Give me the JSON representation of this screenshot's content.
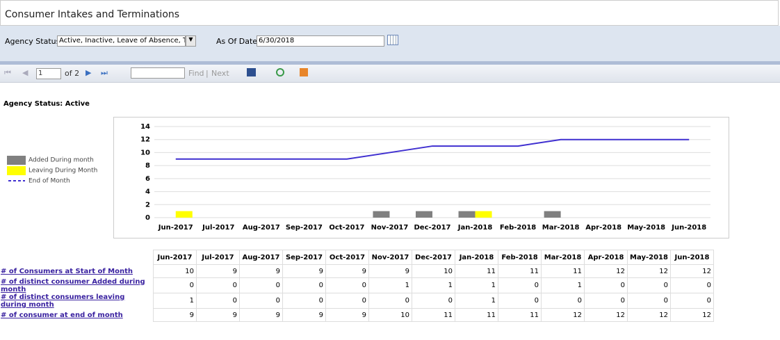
{
  "header": {
    "title": "Consumer Intakes and Terminations"
  },
  "params": {
    "agency_status_label": "Agency Status",
    "agency_status_value": "Active, Inactive, Leave of Absence, Te",
    "as_of_label": "As Of Date",
    "as_of_value": "6/30/2018"
  },
  "toolbar": {
    "page": "1",
    "of": "of 2",
    "find": "Find",
    "separator": "|",
    "next": "Next"
  },
  "section": "Agency Status: Active",
  "chart_data": {
    "type": "combo",
    "categories": [
      "Jun-2017",
      "Jul-2017",
      "Aug-2017",
      "Sep-2017",
      "Oct-2017",
      "Nov-2017",
      "Dec-2017",
      "Jan-2018",
      "Feb-2018",
      "Mar-2018",
      "Apr-2018",
      "May-2018",
      "Jun-2018"
    ],
    "series": [
      {
        "name": "Added During month",
        "mark": "bar",
        "color": "#808080",
        "values": [
          0,
          0,
          0,
          0,
          0,
          1,
          1,
          1,
          0,
          1,
          0,
          0,
          0
        ]
      },
      {
        "name": "Leaving During Month",
        "mark": "bar",
        "color": "#ffff00",
        "values": [
          1,
          0,
          0,
          0,
          0,
          0,
          0,
          1,
          0,
          0,
          0,
          0,
          0
        ]
      },
      {
        "name": "End of Month",
        "mark": "line",
        "color": "#3f2fd0",
        "values": [
          9,
          9,
          9,
          9,
          9,
          10,
          11,
          11,
          11,
          12,
          12,
          12,
          12
        ]
      }
    ],
    "ylim": [
      0,
      14
    ],
    "yticks": [
      0,
      2,
      4,
      6,
      8,
      10,
      12,
      14
    ],
    "grid": true,
    "legend": "left"
  },
  "table": {
    "columns": [
      "Jun-2017",
      "Jul-2017",
      "Aug-2017",
      "Sep-2017",
      "Oct-2017",
      "Nov-2017",
      "Dec-2017",
      "Jan-2018",
      "Feb-2018",
      "Mar-2018",
      "Apr-2018",
      "May-2018",
      "Jun-2018"
    ],
    "rows": [
      {
        "label": "# of Consumers at Start of Month",
        "values": [
          10,
          9,
          9,
          9,
          9,
          9,
          10,
          11,
          11,
          11,
          12,
          12,
          12
        ]
      },
      {
        "label": "# of distinct consumer Added during month",
        "values": [
          0,
          0,
          0,
          0,
          0,
          1,
          1,
          1,
          0,
          1,
          0,
          0,
          0
        ]
      },
      {
        "label": "# of distinct consumers leaving during month",
        "values": [
          1,
          0,
          0,
          0,
          0,
          0,
          0,
          1,
          0,
          0,
          0,
          0,
          0
        ]
      },
      {
        "label": "# of consumer at end of month",
        "values": [
          9,
          9,
          9,
          9,
          9,
          10,
          11,
          11,
          11,
          12,
          12,
          12,
          12
        ]
      }
    ]
  }
}
